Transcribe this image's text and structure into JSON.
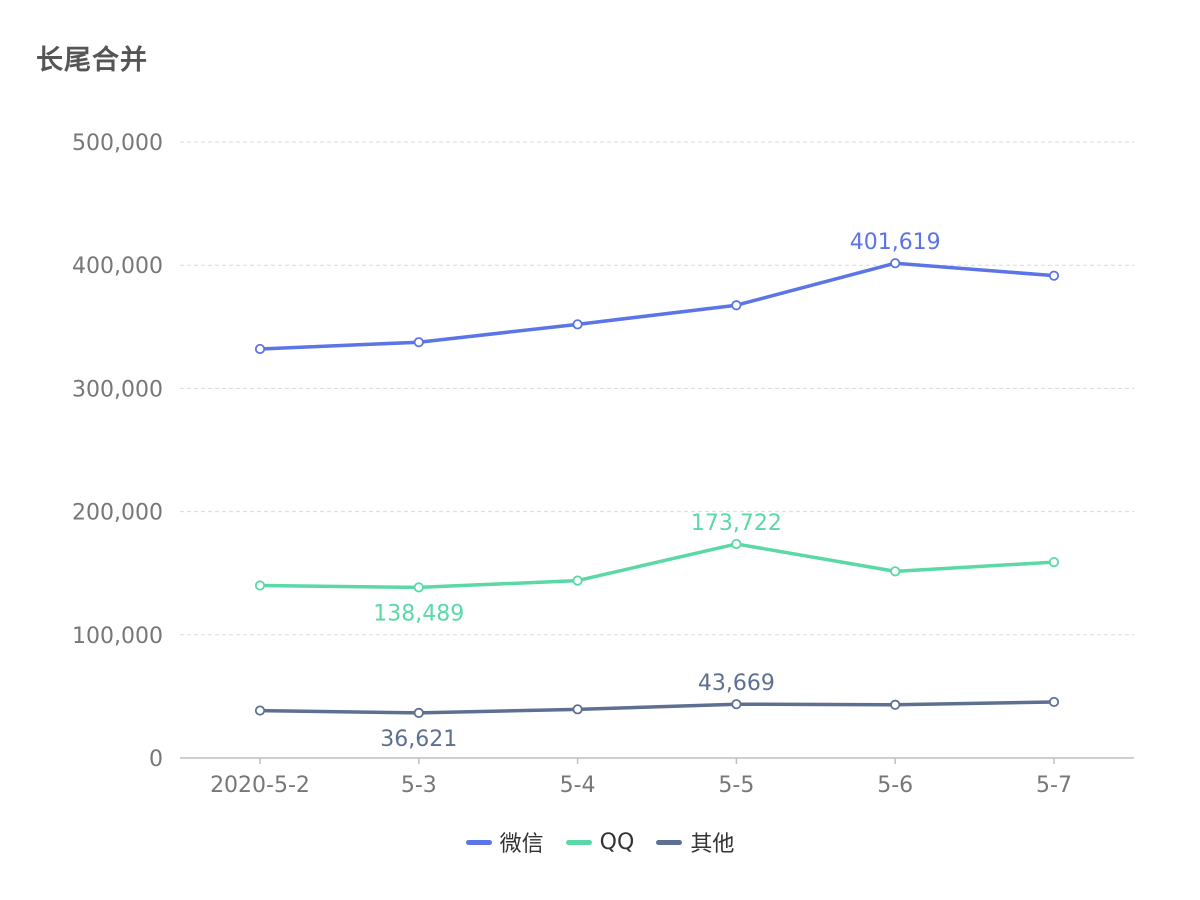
{
  "chart_data": {
    "type": "line",
    "title": "长尾合并",
    "categories": [
      "2020-5-2",
      "5-3",
      "5-4",
      "5-5",
      "5-6",
      "5-7"
    ],
    "ylim": [
      0,
      500000
    ],
    "yticks": [
      0,
      100000,
      200000,
      300000,
      400000,
      500000
    ],
    "ytick_labels": [
      "0",
      "100,000",
      "200,000",
      "300,000",
      "400,000",
      "500,000"
    ],
    "grid": true,
    "legend_position": "bottom-center",
    "series": [
      {
        "name": "微信",
        "color": "#5B74E6",
        "values": [
          332000,
          337500,
          352000,
          367500,
          401619,
          391500
        ],
        "labels": [
          {
            "index": 4,
            "text": "401,619",
            "placement": "above"
          }
        ]
      },
      {
        "name": "QQ",
        "color": "#5AD8A6",
        "values": [
          140000,
          138489,
          144000,
          173722,
          151500,
          159000
        ],
        "labels": [
          {
            "index": 1,
            "text": "138,489",
            "placement": "below"
          },
          {
            "index": 3,
            "text": "173,722",
            "placement": "above"
          }
        ]
      },
      {
        "name": "其他",
        "color": "#5D7092",
        "values": [
          38500,
          36621,
          39500,
          43669,
          43200,
          45500
        ],
        "labels": [
          {
            "index": 1,
            "text": "36,621",
            "placement": "below"
          },
          {
            "index": 3,
            "text": "43,669",
            "placement": "above"
          }
        ]
      }
    ]
  }
}
